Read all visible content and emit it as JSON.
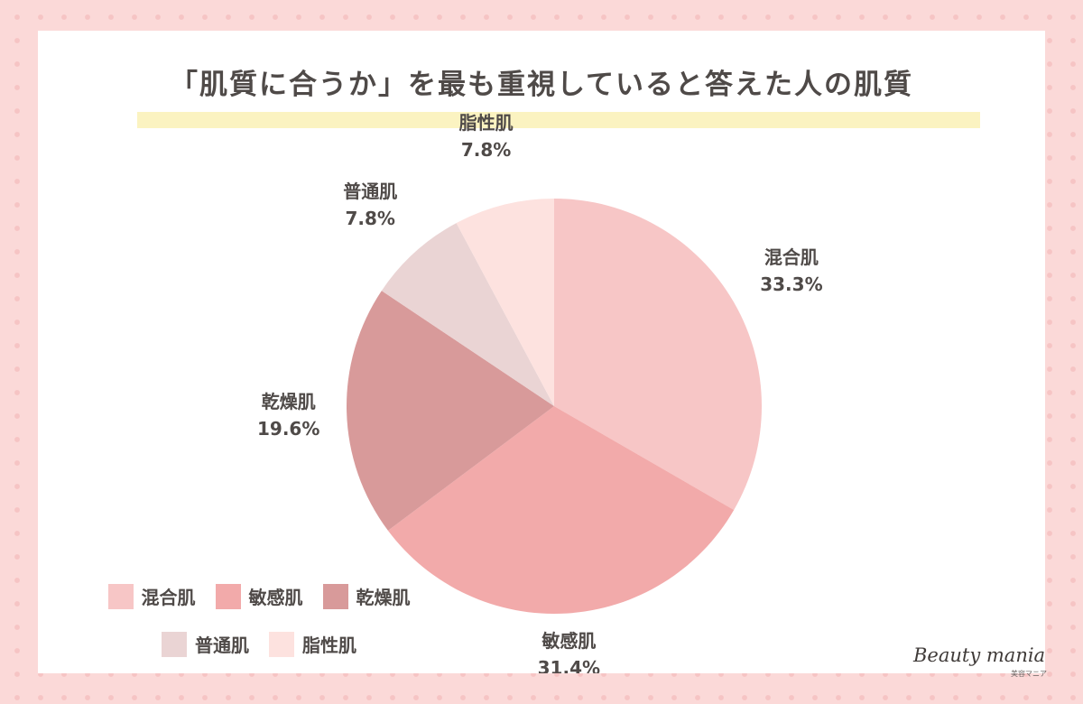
{
  "title": "「肌質に合うか」を最も重視していると答えた人の肌質",
  "colors": {
    "background": "#fbd9d8",
    "dots": "#f6c4c4",
    "title_bar": "#fbf3c1",
    "text": "#4f4a48"
  },
  "chart_data": {
    "type": "pie",
    "title": "「肌質に合うか」を最も重視していると答えた人の肌質",
    "start": "12 o'clock, clockwise",
    "slices": [
      {
        "label": "混合肌",
        "value": 33.3,
        "display": "33.3%",
        "color": "#f7c6c6"
      },
      {
        "label": "敏感肌",
        "value": 31.4,
        "display": "31.4%",
        "color": "#f2aaaa"
      },
      {
        "label": "乾燥肌",
        "value": 19.6,
        "display": "19.6%",
        "color": "#d89a9a"
      },
      {
        "label": "普通肌",
        "value": 7.8,
        "display": "7.8%",
        "color": "#ead4d4"
      },
      {
        "label": "脂性肌",
        "value": 7.8,
        "display": "7.8%",
        "color": "#fde2df"
      }
    ],
    "legend": {
      "placement": "bottom-left"
    }
  },
  "legend": [
    {
      "label": "混合肌",
      "color": "#f7c6c6"
    },
    {
      "label": "敏感肌",
      "color": "#f2aaaa"
    },
    {
      "label": "乾燥肌",
      "color": "#d89a9a"
    },
    {
      "label": "普通肌",
      "color": "#ead4d4"
    },
    {
      "label": "脂性肌",
      "color": "#fde2df"
    }
  ],
  "logo": {
    "main": "Beauty mania",
    "sub": "美容マニア"
  }
}
